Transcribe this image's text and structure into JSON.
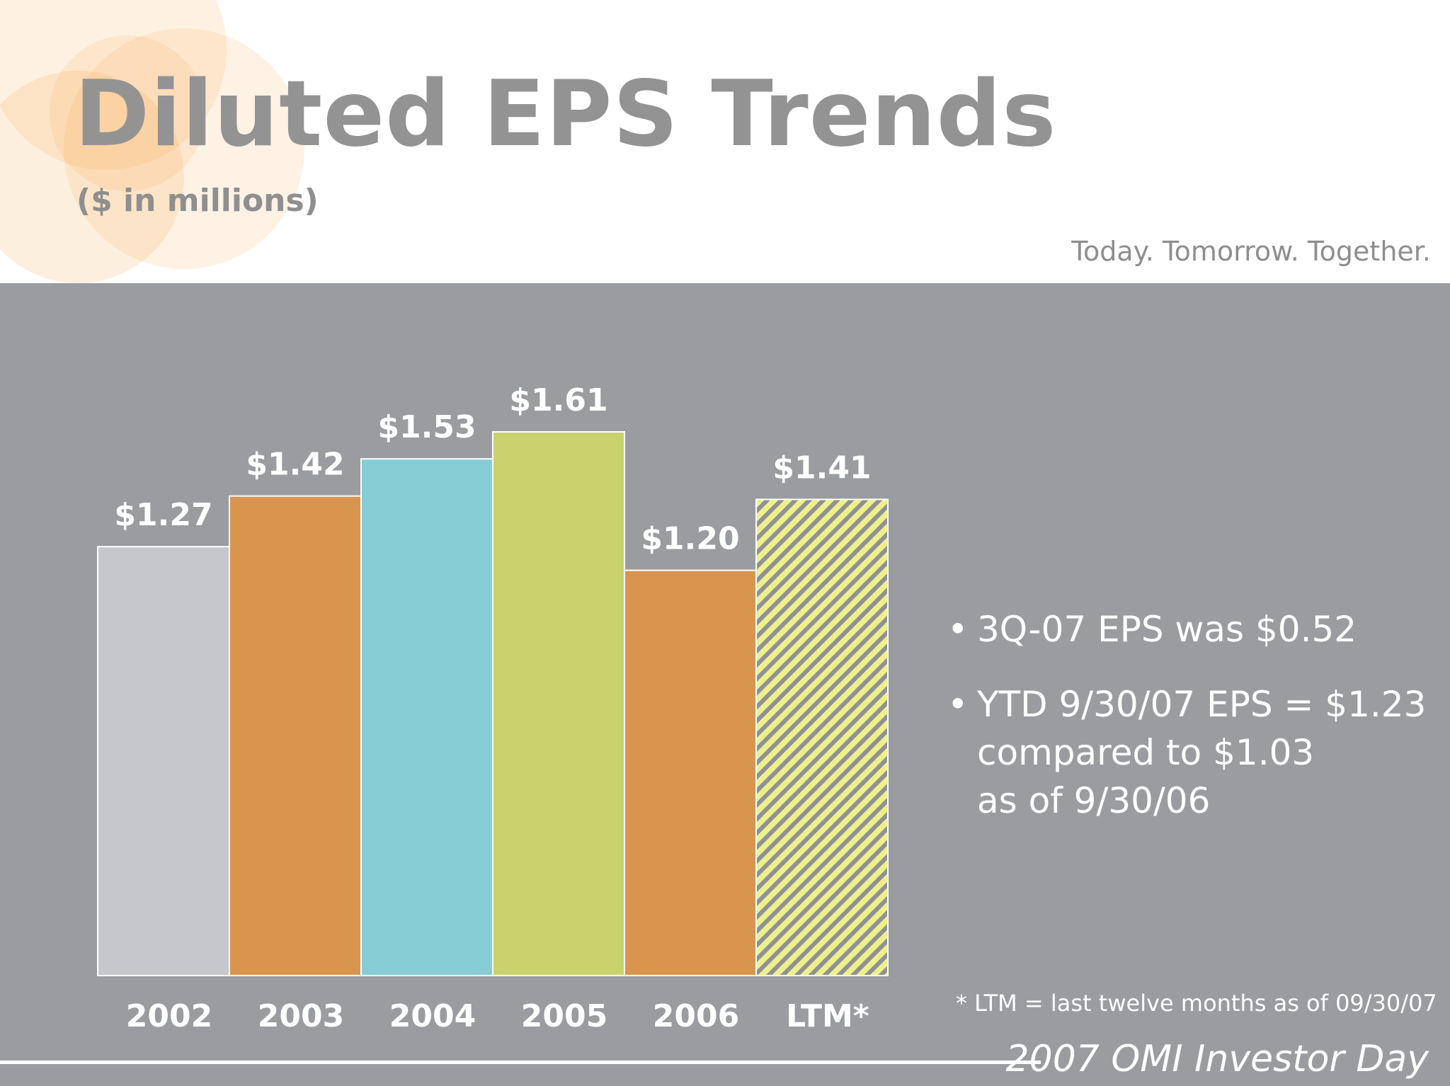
{
  "header": {
    "title": "Diluted EPS Trends",
    "subtitle": "($ in millions)",
    "tagline": "Today. Tomorrow. Together."
  },
  "chart_data": {
    "type": "bar",
    "categories": [
      "2002",
      "2003",
      "2004",
      "2005",
      "2006",
      "LTM*"
    ],
    "values": [
      1.27,
      1.42,
      1.53,
      1.61,
      1.2,
      1.41
    ],
    "value_labels": [
      "$1.27",
      "$1.42",
      "$1.53",
      "$1.61",
      "$1.20",
      "$1.41"
    ],
    "colors": [
      "#c6c7ca",
      "#d9944e",
      "#86cdd5",
      "#c9d26d",
      "#d9944e",
      "#eef08a"
    ],
    "hatched": [
      false,
      false,
      false,
      false,
      false,
      true
    ],
    "ylim": [
      0,
      1.75
    ],
    "title": "Diluted EPS Trends",
    "xlabel": "",
    "ylabel": ""
  },
  "bullets": [
    {
      "lines": [
        "3Q-07 EPS was $0.52"
      ]
    },
    {
      "lines": [
        "YTD 9/30/07 EPS = $1.23",
        "compared to $1.03",
        "as of 9/30/06"
      ]
    }
  ],
  "footnote": "* LTM = last twelve months as of 09/30/07",
  "footer": {
    "event": "2007 OMI Investor Day"
  },
  "colors": {
    "panel": "#9a9ca0",
    "title_gray": "#939393",
    "petal_orange": "#f6a54a"
  }
}
